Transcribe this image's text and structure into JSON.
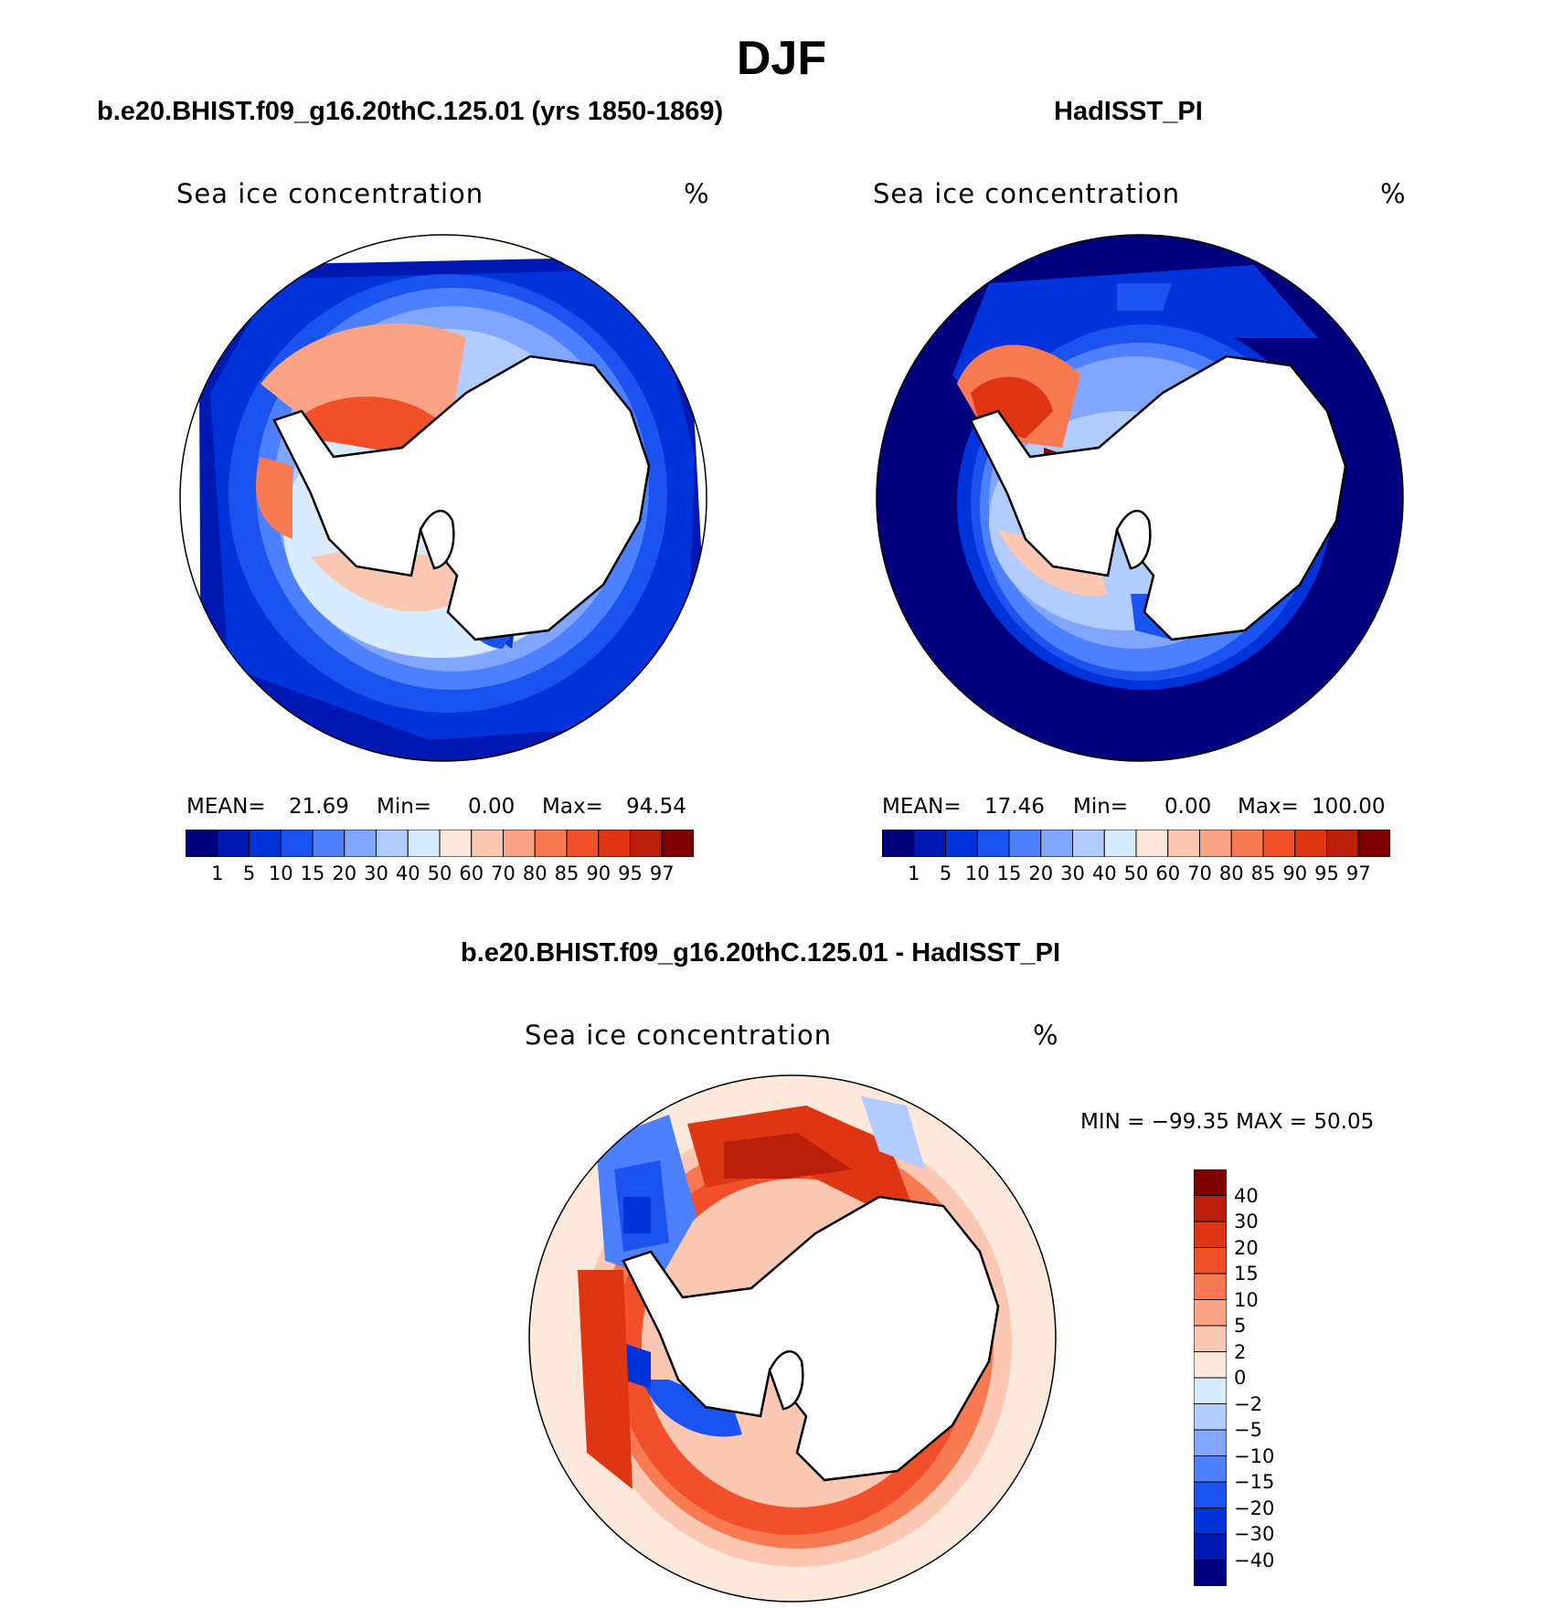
{
  "figure": {
    "season_title": "DJF"
  },
  "panels": [
    {
      "id": "model",
      "case_title": "b.e20.BHIST.f09_g16.20thC.125.01 (yrs 1850-1869)",
      "variable": "Sea  ice  concentration",
      "units": "%",
      "stats": {
        "mean_label": "MEAN=",
        "mean": "21.69",
        "min_label": "Min=",
        "min": "0.00",
        "max_label": "Max=",
        "max": "94.54"
      }
    },
    {
      "id": "obs",
      "case_title": "HadISST_PI",
      "variable": "Sea  ice  concentration",
      "units": "%",
      "stats": {
        "mean_label": "MEAN=",
        "mean": "17.46",
        "min_label": "Min=",
        "min": "0.00",
        "max_label": "Max=",
        "max": "100.00"
      }
    },
    {
      "id": "diff",
      "case_title": "b.e20.BHIST.f09_g16.20thC.125.01 - HadISST_PI",
      "variable": "Sea  ice  concentration",
      "units": "%",
      "stats_text": "MIN  =  −99.35  MAX  =    50.05"
    }
  ],
  "abs_colorbar": {
    "colors": [
      "#00007f",
      "#0019b2",
      "#0033d9",
      "#1a53f0",
      "#4d80ff",
      "#80a6ff",
      "#b3ccff",
      "#d9ebff",
      "#fde9dc",
      "#fcc8b4",
      "#fba385",
      "#f87a52",
      "#f2502a",
      "#de3613",
      "#bb1f0c",
      "#7f0000"
    ],
    "ticks": [
      "1",
      "5",
      "10",
      "15",
      "20",
      "30",
      "40",
      "50",
      "60",
      "70",
      "80",
      "85",
      "90",
      "95",
      "97"
    ]
  },
  "diff_colorbar": {
    "colors": [
      "#00007f",
      "#0019b2",
      "#0033d9",
      "#1a53f0",
      "#4d80ff",
      "#80a6ff",
      "#b3ccff",
      "#d9ebff",
      "#fde9dc",
      "#fcc8b4",
      "#fba385",
      "#f87a52",
      "#f2502a",
      "#de3613",
      "#bb1f0c",
      "#7f0000"
    ],
    "ticks": [
      "−40",
      "−30",
      "−20",
      "−15",
      "−10",
      "−5",
      "−2",
      "0",
      "2",
      "5",
      "10",
      "15",
      "20",
      "30",
      "40"
    ]
  }
}
